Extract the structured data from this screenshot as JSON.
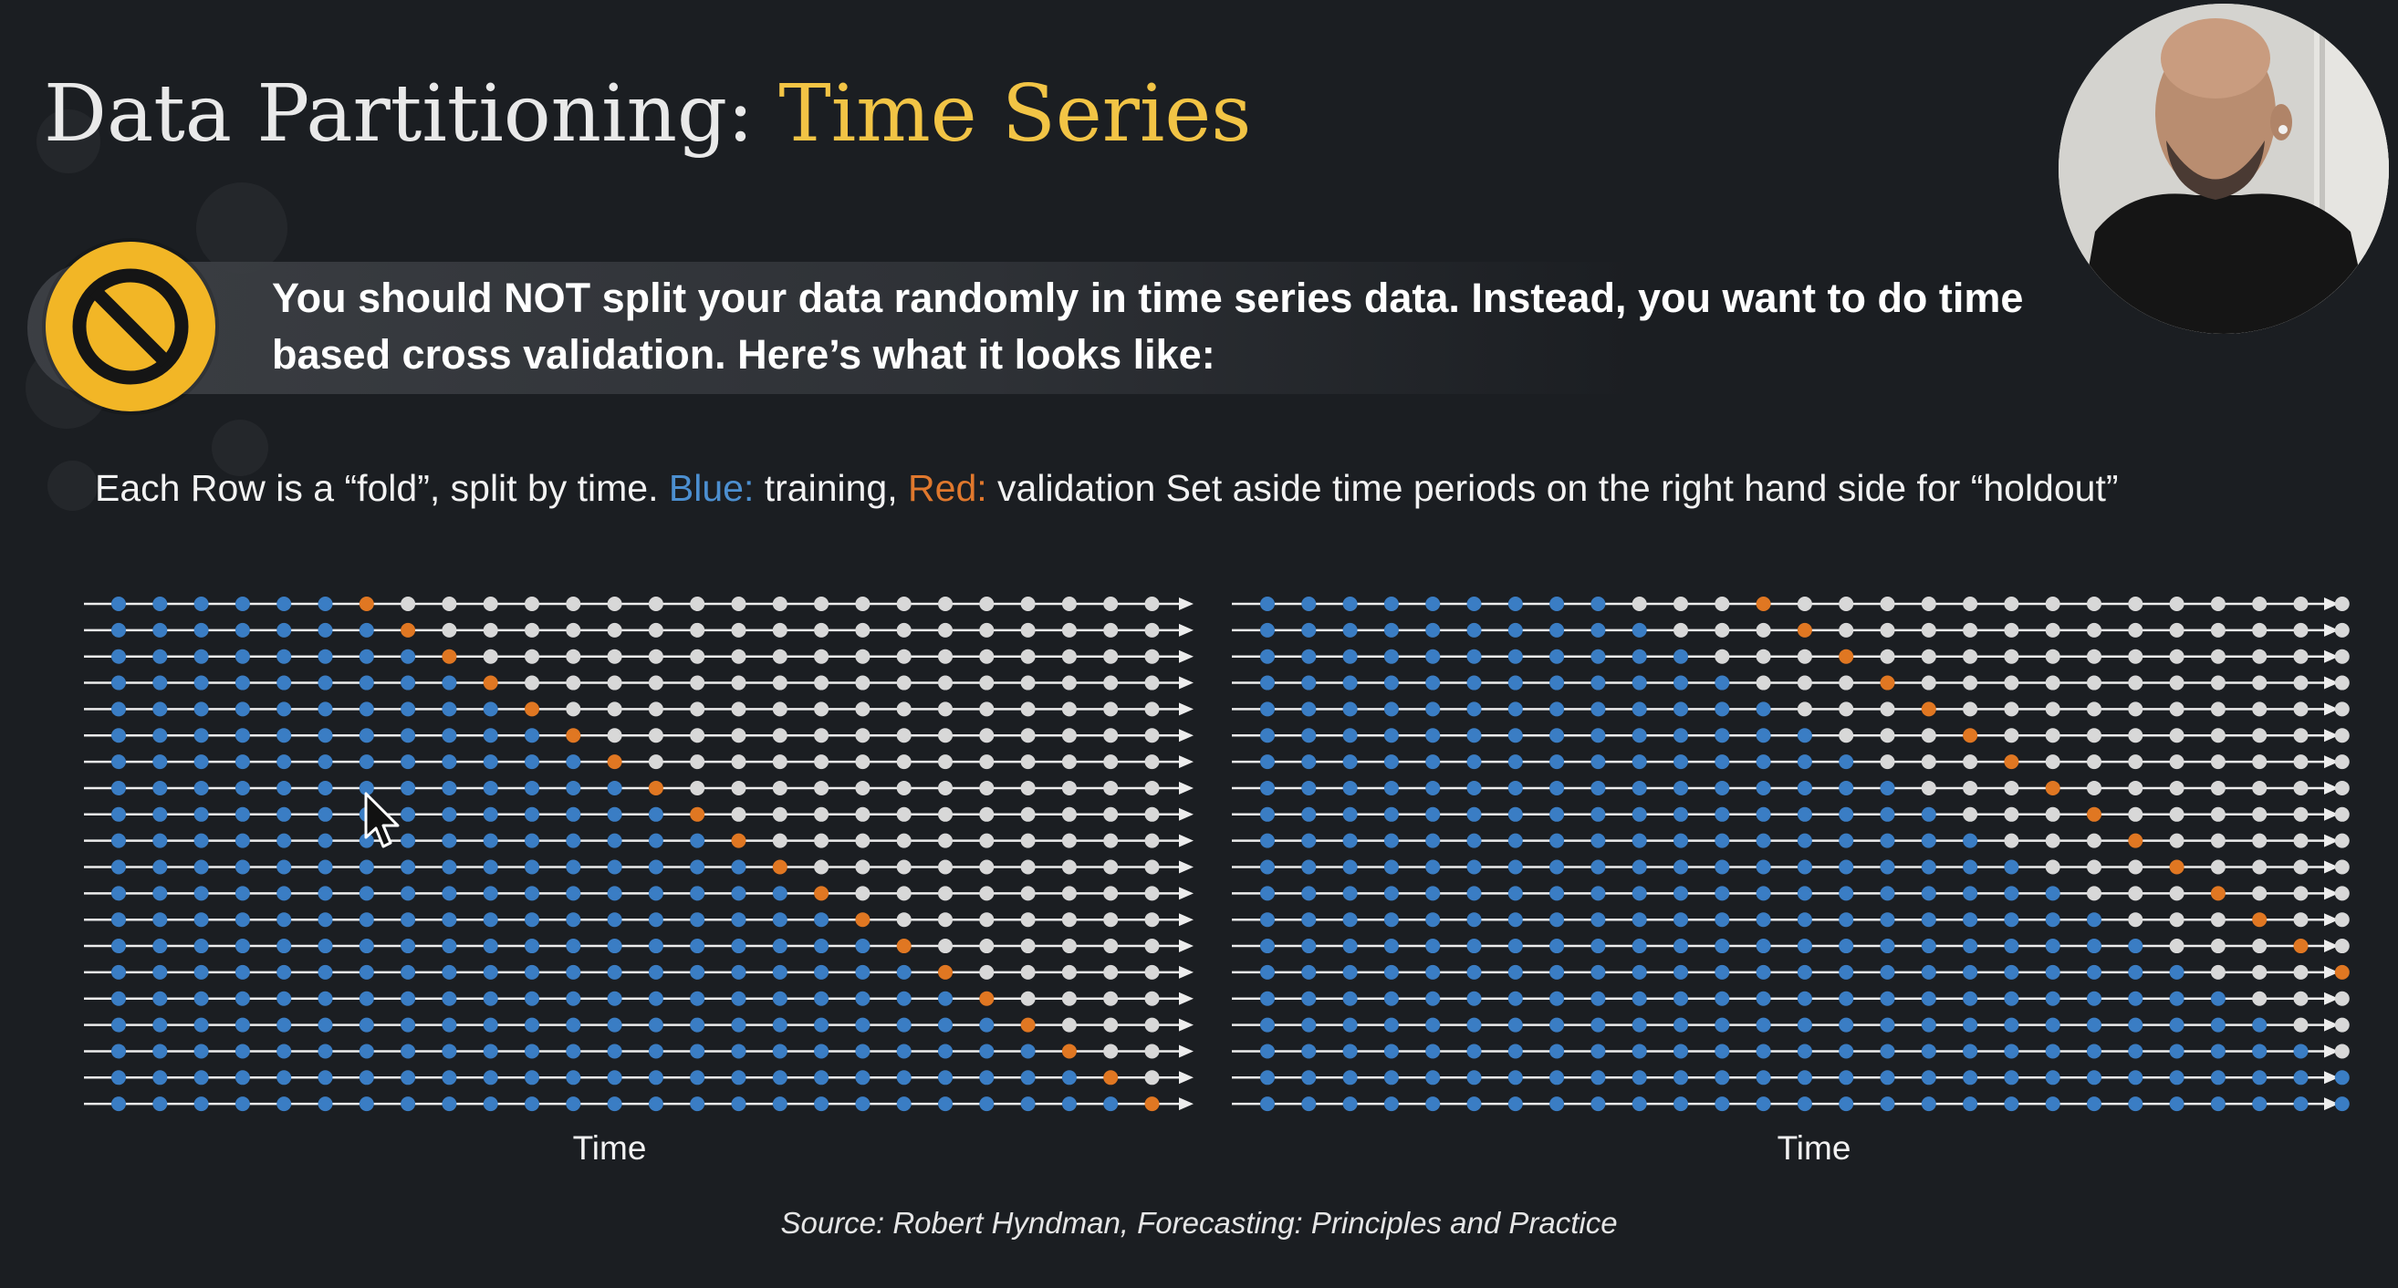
{
  "slide": {
    "title_main": "Data Partitioning:",
    "title_accent": "Time Series",
    "callout_icon": "prohibited-icon",
    "callout_text": "You should NOT split your data randomly in time series data. Instead, you want to do time based cross validation.  Here’s what it looks like:",
    "legend": {
      "intro": "Each Row is a “fold”, split by time.",
      "blue_label": "Blue:",
      "blue_text": "training,",
      "red_label": "Red:",
      "red_text": "validation Set aside time periods on the right hand side for “holdout”"
    },
    "source": "Source: Robert Hyndman, Forecasting: Principles and Practice",
    "colors": {
      "accent": "#f2c445",
      "training": "#3a7dc4",
      "validation": "#e07722",
      "unused": "#d8d8d8",
      "background": "#1b1e22"
    }
  },
  "diagrams": [
    {
      "name": "one-step-ahead",
      "xlabel": "Time",
      "rows": 20,
      "points_per_row": 26,
      "first_training_size": 6,
      "validation_offset": 1
    },
    {
      "name": "multi-step-ahead",
      "xlabel": "Time",
      "rows": 20,
      "points_per_row": 27,
      "first_training_size": 9,
      "validation_offset": 4
    }
  ]
}
